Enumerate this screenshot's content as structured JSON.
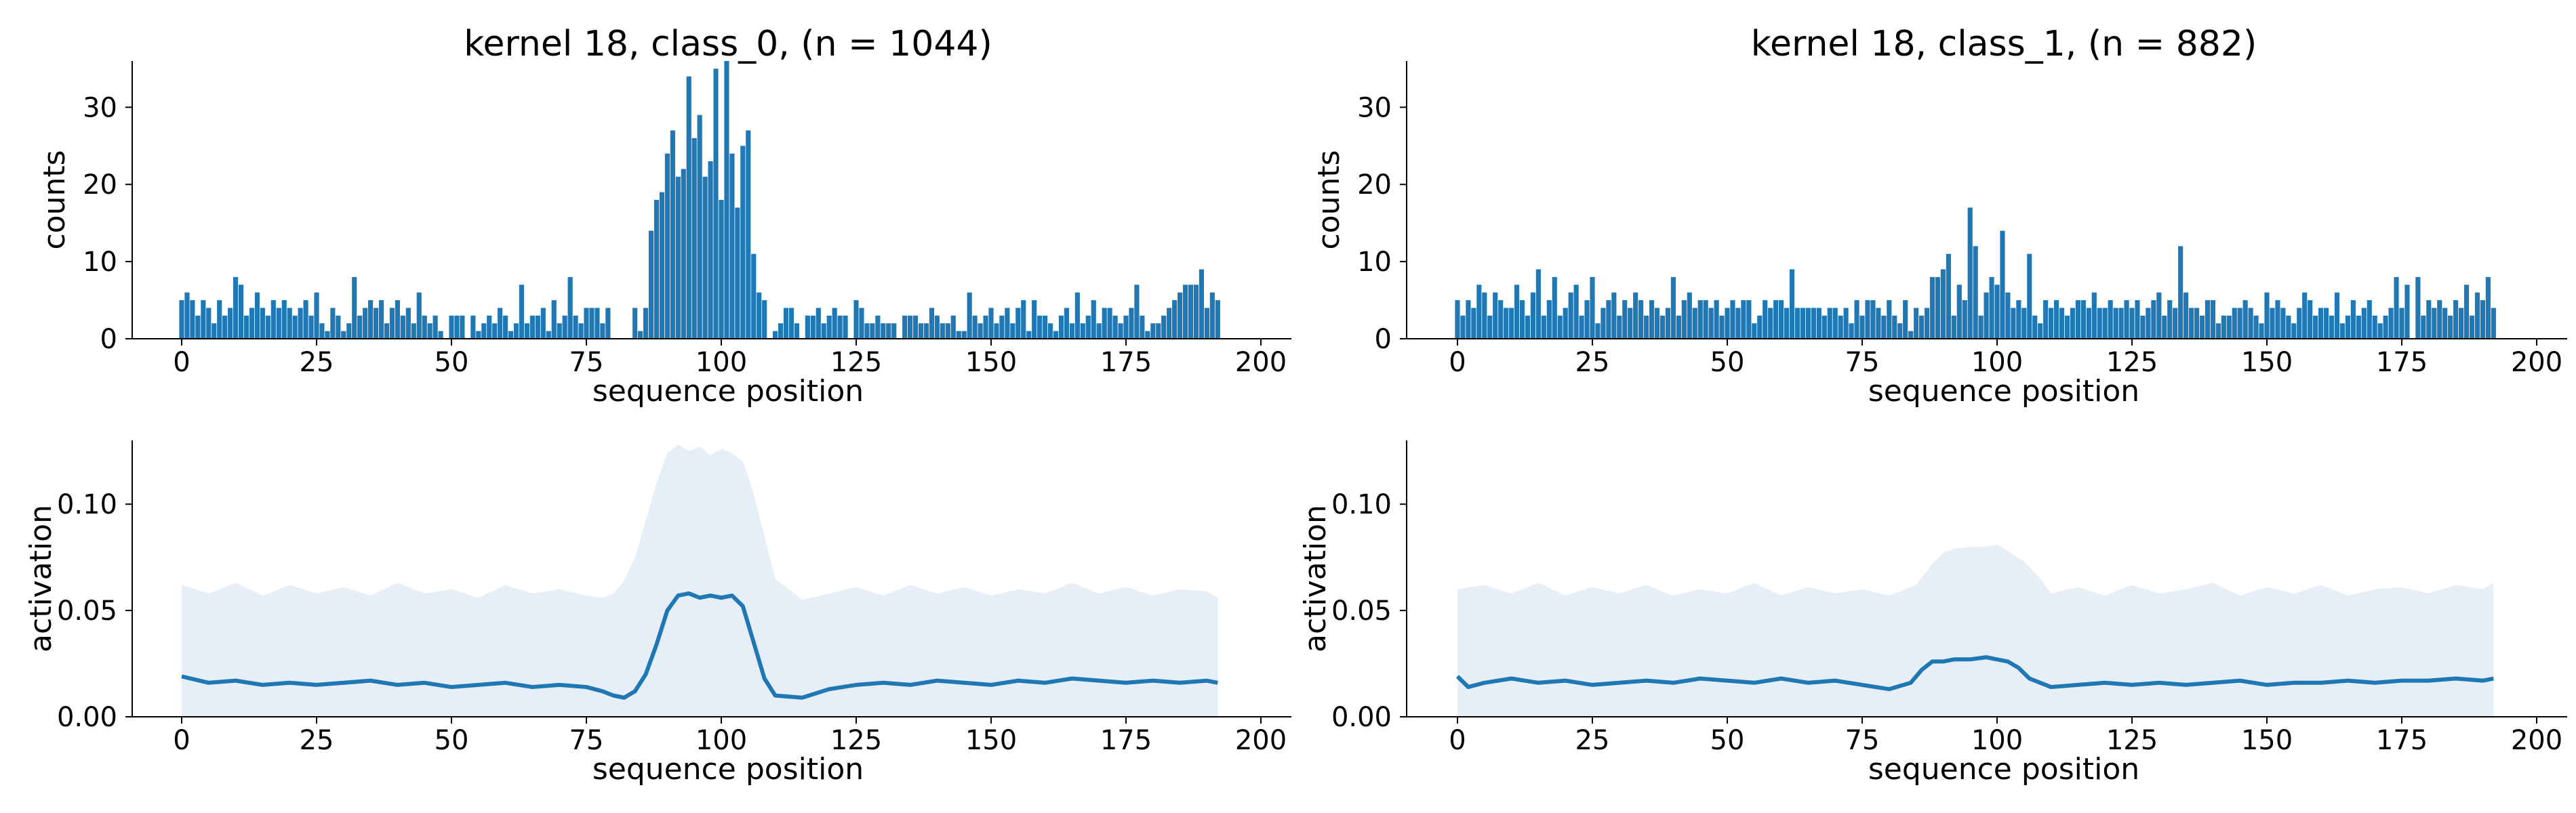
{
  "colors": {
    "bar": "#1f77b4",
    "line": "#1f77b4",
    "band": "#e6eff8",
    "axis": "#000000"
  },
  "chart_data": [
    {
      "type": "bar",
      "title": "kernel 18, class_0, (n = 1044)",
      "xlabel": "sequence position",
      "ylabel": "counts",
      "xlim": [
        -12,
        205
      ],
      "ylim": [
        0,
        36
      ],
      "xticks": [
        0,
        25,
        50,
        75,
        100,
        125,
        150,
        175,
        200
      ],
      "yticks": [
        0,
        10,
        20,
        30
      ],
      "x": [
        0,
        1,
        2,
        3,
        4,
        5,
        6,
        7,
        8,
        9,
        10,
        11,
        12,
        13,
        14,
        15,
        16,
        17,
        18,
        19,
        20,
        21,
        22,
        23,
        24,
        25,
        26,
        27,
        28,
        29,
        30,
        31,
        32,
        33,
        34,
        35,
        36,
        37,
        38,
        39,
        40,
        41,
        42,
        43,
        44,
        45,
        46,
        47,
        48,
        49,
        50,
        51,
        52,
        53,
        54,
        55,
        56,
        57,
        58,
        59,
        60,
        61,
        62,
        63,
        64,
        65,
        66,
        67,
        68,
        69,
        70,
        71,
        72,
        73,
        74,
        75,
        76,
        77,
        78,
        79,
        80,
        81,
        82,
        83,
        84,
        85,
        86,
        87,
        88,
        89,
        90,
        91,
        92,
        93,
        94,
        95,
        96,
        97,
        98,
        99,
        100,
        101,
        102,
        103,
        104,
        105,
        106,
        107,
        108,
        109,
        110,
        111,
        112,
        113,
        114,
        115,
        116,
        117,
        118,
        119,
        120,
        121,
        122,
        123,
        124,
        125,
        126,
        127,
        128,
        129,
        130,
        131,
        132,
        133,
        134,
        135,
        136,
        137,
        138,
        139,
        140,
        141,
        142,
        143,
        144,
        145,
        146,
        147,
        148,
        149,
        150,
        151,
        152,
        153,
        154,
        155,
        156,
        157,
        158,
        159,
        160,
        161,
        162,
        163,
        164,
        165,
        166,
        167,
        168,
        169,
        170,
        171,
        172,
        173,
        174,
        175,
        176,
        177,
        178,
        179,
        180,
        181,
        182,
        183,
        184,
        185,
        186,
        187,
        188,
        189,
        190,
        191,
        192
      ],
      "values": [
        5,
        6,
        5,
        3,
        5,
        4,
        2,
        5,
        3,
        4,
        8,
        7,
        3,
        4,
        6,
        4,
        3,
        5,
        4,
        5,
        4,
        3,
        4,
        5,
        3,
        6,
        2,
        1,
        4,
        3,
        1,
        2,
        8,
        3,
        4,
        5,
        4,
        5,
        2,
        4,
        5,
        3,
        4,
        2,
        6,
        3,
        2,
        3,
        1,
        0,
        3,
        3,
        3,
        0,
        3,
        1,
        2,
        3,
        2,
        4,
        3,
        1,
        2,
        7,
        2,
        3,
        3,
        4,
        1,
        5,
        2,
        3,
        8,
        3,
        2,
        4,
        4,
        4,
        2,
        4,
        0,
        0,
        0,
        0,
        4,
        1,
        4,
        14,
        18,
        19,
        24,
        27,
        21,
        22,
        34,
        26,
        29,
        21,
        23,
        35,
        18,
        36,
        24,
        17,
        25,
        27,
        11,
        6,
        5,
        0,
        1,
        2,
        4,
        4,
        2,
        0,
        3,
        3,
        4,
        2,
        3,
        4,
        3,
        3,
        0,
        5,
        4,
        2,
        2,
        3,
        2,
        2,
        2,
        0,
        3,
        3,
        3,
        2,
        2,
        4,
        3,
        2,
        2,
        3,
        1,
        1,
        6,
        3,
        2,
        3,
        4,
        2,
        3,
        4,
        2,
        4,
        5,
        1,
        5,
        3,
        3,
        2,
        1,
        3,
        4,
        2,
        6,
        2,
        3,
        5,
        2,
        4,
        4,
        3,
        2,
        3,
        4,
        7,
        3,
        1,
        2,
        2,
        3,
        4,
        5,
        6,
        7,
        7,
        7,
        9,
        4,
        6,
        5
      ],
      "bar_width": 0.9
    },
    {
      "type": "bar",
      "title": "kernel 18, class_1, (n = 882)",
      "xlabel": "sequence position",
      "ylabel": "counts",
      "xlim": [
        -12,
        205
      ],
      "ylim": [
        0,
        36
      ],
      "xticks": [
        0,
        25,
        50,
        75,
        100,
        125,
        150,
        175,
        200
      ],
      "yticks": [
        0,
        10,
        20,
        30
      ],
      "x": [
        0,
        1,
        2,
        3,
        4,
        5,
        6,
        7,
        8,
        9,
        10,
        11,
        12,
        13,
        14,
        15,
        16,
        17,
        18,
        19,
        20,
        21,
        22,
        23,
        24,
        25,
        26,
        27,
        28,
        29,
        30,
        31,
        32,
        33,
        34,
        35,
        36,
        37,
        38,
        39,
        40,
        41,
        42,
        43,
        44,
        45,
        46,
        47,
        48,
        49,
        50,
        51,
        52,
        53,
        54,
        55,
        56,
        57,
        58,
        59,
        60,
        61,
        62,
        63,
        64,
        65,
        66,
        67,
        68,
        69,
        70,
        71,
        72,
        73,
        74,
        75,
        76,
        77,
        78,
        79,
        80,
        81,
        82,
        83,
        84,
        85,
        86,
        87,
        88,
        89,
        90,
        91,
        92,
        93,
        94,
        95,
        96,
        97,
        98,
        99,
        100,
        101,
        102,
        103,
        104,
        105,
        106,
        107,
        108,
        109,
        110,
        111,
        112,
        113,
        114,
        115,
        116,
        117,
        118,
        119,
        120,
        121,
        122,
        123,
        124,
        125,
        126,
        127,
        128,
        129,
        130,
        131,
        132,
        133,
        134,
        135,
        136,
        137,
        138,
        139,
        140,
        141,
        142,
        143,
        144,
        145,
        146,
        147,
        148,
        149,
        150,
        151,
        152,
        153,
        154,
        155,
        156,
        157,
        158,
        159,
        160,
        161,
        162,
        163,
        164,
        165,
        166,
        167,
        168,
        169,
        170,
        171,
        172,
        173,
        174,
        175,
        176,
        177,
        178,
        179,
        180,
        181,
        182,
        183,
        184,
        185,
        186,
        187,
        188,
        189,
        190,
        191,
        192
      ],
      "values": [
        5,
        3,
        5,
        4,
        7,
        6,
        3,
        6,
        5,
        4,
        4,
        7,
        5,
        3,
        6,
        9,
        3,
        5,
        8,
        3,
        4,
        6,
        7,
        3,
        5,
        8,
        2,
        4,
        5,
        6,
        3,
        5,
        4,
        6,
        5,
        3,
        5,
        4,
        3,
        4,
        8,
        3,
        5,
        6,
        4,
        5,
        5,
        4,
        5,
        3,
        4,
        5,
        4,
        5,
        5,
        2,
        3,
        5,
        4,
        5,
        5,
        4,
        9,
        4,
        4,
        4,
        4,
        4,
        3,
        4,
        4,
        3,
        4,
        2,
        5,
        3,
        5,
        5,
        4,
        3,
        5,
        3,
        2,
        5,
        1,
        4,
        3,
        4,
        8,
        8,
        9,
        11,
        3,
        7,
        5,
        17,
        12,
        3,
        6,
        8,
        7,
        14,
        6,
        4,
        5,
        4,
        11,
        3,
        2,
        5,
        4,
        5,
        4,
        3,
        4,
        5,
        5,
        4,
        6,
        4,
        4,
        5,
        4,
        4,
        5,
        4,
        5,
        3,
        4,
        5,
        6,
        3,
        5,
        4,
        12,
        6,
        4,
        4,
        3,
        5,
        5,
        2,
        3,
        3,
        4,
        4,
        5,
        4,
        3,
        2,
        6,
        4,
        5,
        4,
        3,
        2,
        4,
        6,
        5,
        3,
        4,
        4,
        3,
        6,
        2,
        3,
        5,
        3,
        4,
        5,
        3,
        2,
        3,
        4,
        8,
        4,
        7,
        0,
        8,
        3,
        5,
        4,
        5,
        4,
        3,
        5,
        4,
        7,
        3,
        6,
        5,
        8,
        4
      ],
      "bar_width": 0.9
    },
    {
      "type": "line",
      "title": "",
      "xlabel": "sequence position",
      "ylabel": "activation",
      "xlim": [
        -12,
        205
      ],
      "ylim": [
        0,
        0.13
      ],
      "xticks": [
        0,
        25,
        50,
        75,
        100,
        125,
        150,
        175,
        200
      ],
      "yticks": [
        0,
        0.05,
        0.1
      ],
      "ytick_labels": [
        "0.00",
        "0.05",
        "0.10"
      ],
      "band_x": [
        0,
        5,
        10,
        15,
        20,
        25,
        30,
        35,
        40,
        45,
        50,
        55,
        60,
        65,
        70,
        75,
        78,
        80,
        82,
        84,
        86,
        88,
        90,
        92,
        94,
        96,
        98,
        100,
        102,
        104,
        106,
        108,
        110,
        115,
        120,
        125,
        130,
        135,
        140,
        145,
        150,
        155,
        160,
        165,
        170,
        175,
        180,
        185,
        190,
        192
      ],
      "band_upper": [
        0.062,
        0.058,
        0.063,
        0.057,
        0.062,
        0.058,
        0.061,
        0.057,
        0.063,
        0.058,
        0.06,
        0.056,
        0.062,
        0.058,
        0.06,
        0.057,
        0.056,
        0.058,
        0.064,
        0.075,
        0.092,
        0.11,
        0.124,
        0.128,
        0.125,
        0.127,
        0.123,
        0.126,
        0.124,
        0.12,
        0.105,
        0.085,
        0.065,
        0.055,
        0.058,
        0.061,
        0.057,
        0.062,
        0.058,
        0.061,
        0.057,
        0.06,
        0.058,
        0.063,
        0.058,
        0.061,
        0.057,
        0.06,
        0.059,
        0.056
      ],
      "band_lower": 0,
      "series": [
        {
          "name": "",
          "x": [
            0,
            5,
            10,
            15,
            20,
            25,
            30,
            35,
            40,
            45,
            50,
            55,
            60,
            65,
            70,
            75,
            78,
            80,
            82,
            84,
            86,
            88,
            90,
            92,
            94,
            96,
            98,
            100,
            102,
            104,
            106,
            108,
            110,
            115,
            120,
            125,
            130,
            135,
            140,
            145,
            150,
            155,
            160,
            165,
            170,
            175,
            180,
            185,
            190,
            192
          ],
          "y": [
            0.019,
            0.016,
            0.017,
            0.015,
            0.016,
            0.015,
            0.016,
            0.017,
            0.015,
            0.016,
            0.014,
            0.015,
            0.016,
            0.014,
            0.015,
            0.014,
            0.012,
            0.01,
            0.009,
            0.012,
            0.02,
            0.034,
            0.05,
            0.057,
            0.058,
            0.056,
            0.057,
            0.056,
            0.057,
            0.052,
            0.035,
            0.018,
            0.01,
            0.009,
            0.013,
            0.015,
            0.016,
            0.015,
            0.017,
            0.016,
            0.015,
            0.017,
            0.016,
            0.018,
            0.017,
            0.016,
            0.017,
            0.016,
            0.017,
            0.016
          ]
        }
      ]
    },
    {
      "type": "line",
      "title": "",
      "xlabel": "sequence position",
      "ylabel": "activation",
      "xlim": [
        -12,
        205
      ],
      "ylim": [
        0,
        0.13
      ],
      "xticks": [
        0,
        25,
        50,
        75,
        100,
        125,
        150,
        175,
        200
      ],
      "yticks": [
        0,
        0.05,
        0.1
      ],
      "ytick_labels": [
        "0.00",
        "0.05",
        "0.10"
      ],
      "band_x": [
        0,
        5,
        10,
        15,
        20,
        25,
        30,
        35,
        40,
        45,
        50,
        55,
        60,
        65,
        70,
        75,
        80,
        85,
        88,
        90,
        92,
        95,
        98,
        100,
        102,
        105,
        108,
        110,
        115,
        120,
        125,
        130,
        135,
        140,
        145,
        150,
        155,
        160,
        165,
        170,
        175,
        180,
        185,
        190,
        192
      ],
      "band_upper": [
        0.06,
        0.062,
        0.058,
        0.063,
        0.057,
        0.061,
        0.058,
        0.062,
        0.057,
        0.06,
        0.058,
        0.063,
        0.057,
        0.061,
        0.058,
        0.06,
        0.057,
        0.062,
        0.072,
        0.077,
        0.079,
        0.08,
        0.08,
        0.081,
        0.078,
        0.073,
        0.065,
        0.058,
        0.061,
        0.057,
        0.062,
        0.058,
        0.06,
        0.063,
        0.057,
        0.061,
        0.058,
        0.062,
        0.057,
        0.06,
        0.061,
        0.058,
        0.062,
        0.06,
        0.063
      ],
      "band_lower": 0,
      "series": [
        {
          "name": "",
          "x": [
            0,
            2,
            5,
            10,
            15,
            20,
            25,
            30,
            35,
            40,
            45,
            50,
            55,
            60,
            65,
            70,
            75,
            80,
            84,
            86,
            88,
            90,
            92,
            95,
            98,
            100,
            102,
            104,
            106,
            108,
            110,
            115,
            120,
            125,
            130,
            135,
            140,
            145,
            150,
            155,
            160,
            165,
            170,
            175,
            180,
            185,
            190,
            192
          ],
          "y": [
            0.019,
            0.014,
            0.016,
            0.018,
            0.016,
            0.017,
            0.015,
            0.016,
            0.017,
            0.016,
            0.018,
            0.017,
            0.016,
            0.018,
            0.016,
            0.017,
            0.015,
            0.013,
            0.016,
            0.022,
            0.026,
            0.026,
            0.027,
            0.027,
            0.028,
            0.027,
            0.026,
            0.023,
            0.018,
            0.016,
            0.014,
            0.015,
            0.016,
            0.015,
            0.016,
            0.015,
            0.016,
            0.017,
            0.015,
            0.016,
            0.016,
            0.017,
            0.016,
            0.017,
            0.017,
            0.018,
            0.017,
            0.018
          ]
        }
      ]
    }
  ]
}
